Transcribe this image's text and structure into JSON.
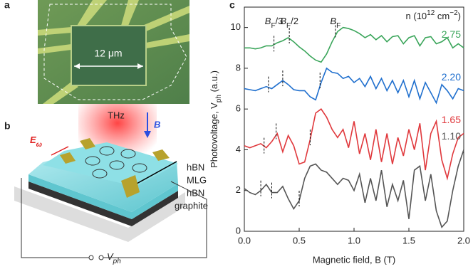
{
  "panel_a": {
    "label": "a",
    "scale": "12 μm"
  },
  "panel_b": {
    "label": "b",
    "beam": "THz",
    "field": "B",
    "e_field": {
      "main": "E",
      "sub": "ω"
    },
    "layers": [
      "hBN",
      "MLG",
      "hBN",
      "graphite"
    ],
    "voltage": {
      "main": "V",
      "sub": "ph"
    }
  },
  "chart_data": {
    "type": "line",
    "panel_label": "c",
    "x_label": "Magnetic field, B (T)",
    "y_label": {
      "main": "Photovoltage, V",
      "sub": "ph",
      "rest": " (a.u.)"
    },
    "legend_title": {
      "main": "n (10",
      "sup": "12",
      "rest": " cm",
      "sup2": "−2",
      "end": ")"
    },
    "annotations": [
      {
        "main": "B",
        "sub": "F",
        "rest": "/3",
        "x": 0.27
      },
      {
        "main": "B",
        "sub": "F",
        "rest": "/2",
        "x": 0.41
      },
      {
        "main": "B",
        "sub": "F",
        "rest": "",
        "x": 0.83
      }
    ],
    "x": [
      0,
      0.05,
      0.1,
      0.15,
      0.2,
      0.25,
      0.3,
      0.35,
      0.4,
      0.45,
      0.5,
      0.55,
      0.6,
      0.65,
      0.7,
      0.75,
      0.8,
      0.85,
      0.9,
      0.95,
      1.0,
      1.05,
      1.1,
      1.15,
      1.2,
      1.25,
      1.3,
      1.35,
      1.4,
      1.45,
      1.5,
      1.55,
      1.6,
      1.65,
      1.7,
      1.75,
      1.8,
      1.85,
      1.9,
      1.95,
      2.0
    ],
    "series": [
      {
        "name": "2.75",
        "color": "#3aa55a",
        "field_marks": [
          0.27,
          0.41,
          0.83
        ],
        "values": [
          9.0,
          9.0,
          8.95,
          9.0,
          9.1,
          9.1,
          9.25,
          9.35,
          9.5,
          9.3,
          9.05,
          8.85,
          8.6,
          8.4,
          8.3,
          8.7,
          9.3,
          9.8,
          10.0,
          9.95,
          9.85,
          9.7,
          9.5,
          9.65,
          9.4,
          9.6,
          9.3,
          9.55,
          9.6,
          9.2,
          9.5,
          9.6,
          9.1,
          9.5,
          9.55,
          9.2,
          9.3,
          9.5,
          9.0,
          9.2,
          9.0
        ]
      },
      {
        "name": "2.20",
        "color": "#1f6fce",
        "field_marks": [
          0.22,
          0.35,
          0.69
        ],
        "values": [
          7.0,
          6.95,
          6.9,
          7.0,
          7.1,
          7.0,
          7.2,
          7.4,
          7.2,
          6.95,
          6.9,
          6.9,
          6.6,
          6.45,
          7.3,
          8.0,
          7.8,
          7.75,
          7.5,
          7.6,
          7.3,
          7.5,
          7.1,
          7.6,
          7.0,
          7.5,
          6.9,
          7.4,
          6.8,
          7.4,
          6.6,
          7.4,
          6.5,
          7.3,
          6.8,
          6.3,
          7.2,
          6.9,
          6.5,
          7.0,
          6.9
        ]
      },
      {
        "name": "1.65",
        "color": "#e0383c",
        "field_marks": [
          0.18,
          0.29,
          0.6
        ],
        "values": [
          4.2,
          4.1,
          4.2,
          4.3,
          4.1,
          4.4,
          4.8,
          3.9,
          4.7,
          4.2,
          3.3,
          3.4,
          4.5,
          5.8,
          6.0,
          5.6,
          5.0,
          4.6,
          5.0,
          4.1,
          5.4,
          3.8,
          4.8,
          3.5,
          5.0,
          3.4,
          4.8,
          3.3,
          4.6,
          3.7,
          5.0,
          4.0,
          5.3,
          3.0,
          4.8,
          5.4,
          3.5,
          2.6,
          3.8,
          4.6,
          4.8
        ]
      },
      {
        "name": "1.10",
        "color": "#555555",
        "field_marks": [
          0.15,
          0.25,
          0.5
        ],
        "values": [
          2.1,
          1.9,
          1.8,
          2.0,
          2.3,
          1.9,
          1.9,
          2.2,
          1.6,
          1.1,
          1.5,
          2.6,
          3.2,
          3.3,
          3.0,
          2.9,
          2.6,
          2.3,
          2.6,
          2.5,
          2.0,
          2.8,
          1.4,
          2.6,
          1.5,
          3.0,
          1.2,
          2.3,
          1.5,
          2.5,
          0.6,
          3.0,
          3.2,
          1.5,
          2.8,
          1.0,
          0.2,
          0.5,
          2.0,
          3.2,
          4.0
        ]
      }
    ],
    "xlim": [
      0,
      2
    ],
    "ylim": [
      0,
      11
    ],
    "xticks": [
      {
        "value": 0,
        "label": "0.0"
      },
      {
        "value": 0.5,
        "label": "0.5"
      },
      {
        "value": 1,
        "label": "1.0"
      },
      {
        "value": 1.5,
        "label": "1.5"
      },
      {
        "value": 2,
        "label": "2.0"
      }
    ],
    "yticks": [
      0,
      2,
      4,
      6,
      8,
      10
    ]
  }
}
